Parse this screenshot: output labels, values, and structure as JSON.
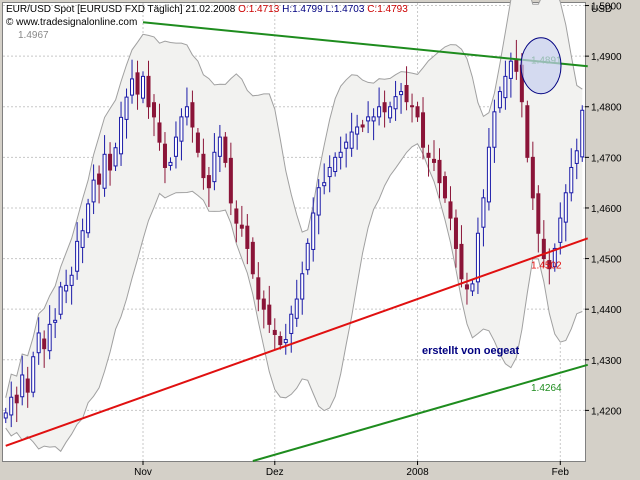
{
  "header": {
    "symbol": "EUR/USD Spot [EURUSD FXD  Täglich]",
    "date": "21.02.2008",
    "open_label": "O:",
    "open": "1.4713",
    "high_label": "H:",
    "high": "1.4799",
    "low_label": "L:",
    "low": "1.4703",
    "close_label": "C:",
    "close": "1.4793",
    "credit": "© www.tradesignalonline.com",
    "prev_close": "1.4967"
  },
  "note": "erstellt von oegeat",
  "colors": {
    "bull": "#1a1aa8",
    "bear": "#8b1538",
    "resistance": "#1e8c1e",
    "support": "#e01010",
    "lower_channel": "#1e8c1e",
    "bollinger": "#a0a0a0",
    "highlight_fill": "#c8d0f0",
    "grid": "#c8c8c8"
  },
  "chart_data": {
    "type": "candlestick",
    "title": "EUR/USD Spot [EURUSD FXD  Täglich]",
    "ylabel": "USD",
    "ylim": [
      1.41,
      1.5005
    ],
    "y_ticks": [
      "1,5000",
      "1,4900",
      "1,4800",
      "1,4700",
      "1,4600",
      "1,4500",
      "1,4400",
      "1,4300",
      "1,4200"
    ],
    "y_tick_values": [
      1.5,
      1.49,
      1.48,
      1.47,
      1.46,
      1.45,
      1.44,
      1.43,
      1.42
    ],
    "x_ticks": [
      "Nov",
      "Dez",
      "2008",
      "Feb"
    ],
    "x_tick_index": [
      25,
      49,
      75,
      101
    ],
    "candles_count": 106,
    "closes": [
      1.4195,
      1.4226,
      1.4215,
      1.427,
      1.4236,
      1.4306,
      1.4353,
      1.4322,
      1.437,
      1.4378,
      1.4444,
      1.4447,
      1.4467,
      1.4534,
      1.4555,
      1.4608,
      1.4655,
      1.4647,
      1.4706,
      1.4675,
      1.4719,
      1.4779,
      1.4819,
      1.4855,
      1.4825,
      1.486,
      1.48,
      1.478,
      1.473,
      1.468,
      1.469,
      1.474,
      1.478,
      1.48,
      1.476,
      1.471,
      1.466,
      1.464,
      1.471,
      1.474,
      1.469,
      1.461,
      1.457,
      1.456,
      1.452,
      1.447,
      1.442,
      1.44,
      1.437,
      1.435,
      1.433,
      1.434,
      1.439,
      1.442,
      1.447,
      1.453,
      1.459,
      1.464,
      1.465,
      1.468,
      1.47,
      1.471,
      1.473,
      1.475,
      1.476,
      1.476,
      1.478,
      1.478,
      1.48,
      1.479,
      1.48,
      1.482,
      1.483,
      1.481,
      1.48,
      1.478,
      1.472,
      1.47,
      1.469,
      1.465,
      1.462,
      1.458,
      1.452,
      1.446,
      1.444,
      1.445,
      1.455,
      1.462,
      1.472,
      1.479,
      1.483,
      1.486,
      1.489,
      1.487,
      1.481,
      1.47,
      1.462,
      1.455,
      1.45,
      1.448,
      1.452,
      1.458,
      1.463,
      1.468,
      1.4713,
      1.4793
    ],
    "trendlines": [
      {
        "name": "resistance",
        "label": "1.4891",
        "from": [
          25,
          1.4967
        ],
        "to": [
          106,
          1.488
        ]
      },
      {
        "name": "support",
        "label": "1.4502",
        "from": [
          0,
          1.413
        ],
        "to": [
          106,
          1.454
        ]
      },
      {
        "name": "lower_channel",
        "label": "1.4264",
        "from": [
          45,
          1.41
        ],
        "to": [
          106,
          1.429
        ]
      }
    ],
    "highlight_value": 1.4891,
    "grid": true
  }
}
